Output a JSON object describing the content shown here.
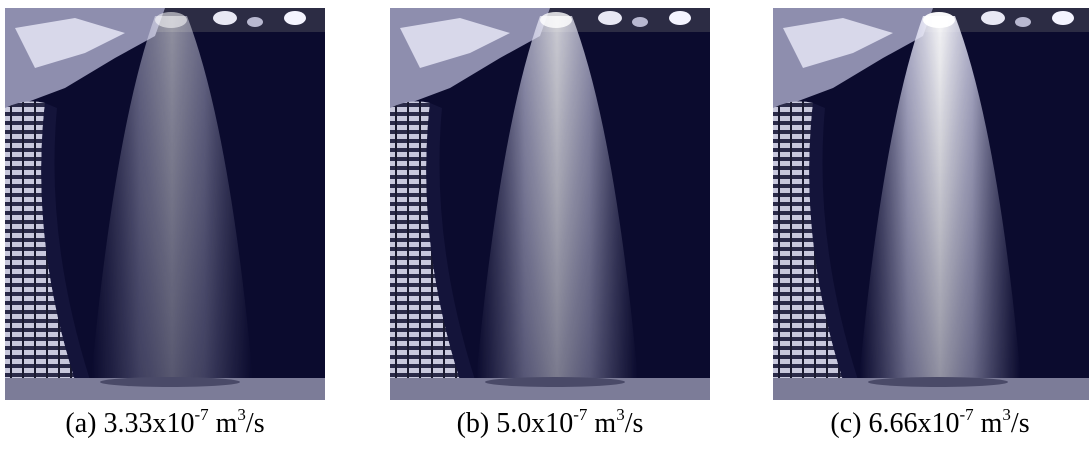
{
  "panels": [
    {
      "label": "(a) 3.33x10",
      "exponent": "-7",
      "unit": "m",
      "unit_exponent": "3",
      "unit_suffix": "/s"
    },
    {
      "label": "(b) 5.0x10",
      "exponent": "-7",
      "unit": "m",
      "unit_exponent": "3",
      "unit_suffix": "/s"
    },
    {
      "label": "(c) 6.66x10",
      "exponent": "-7",
      "unit": "m",
      "unit_exponent": "3",
      "unit_suffix": "/s"
    }
  ]
}
